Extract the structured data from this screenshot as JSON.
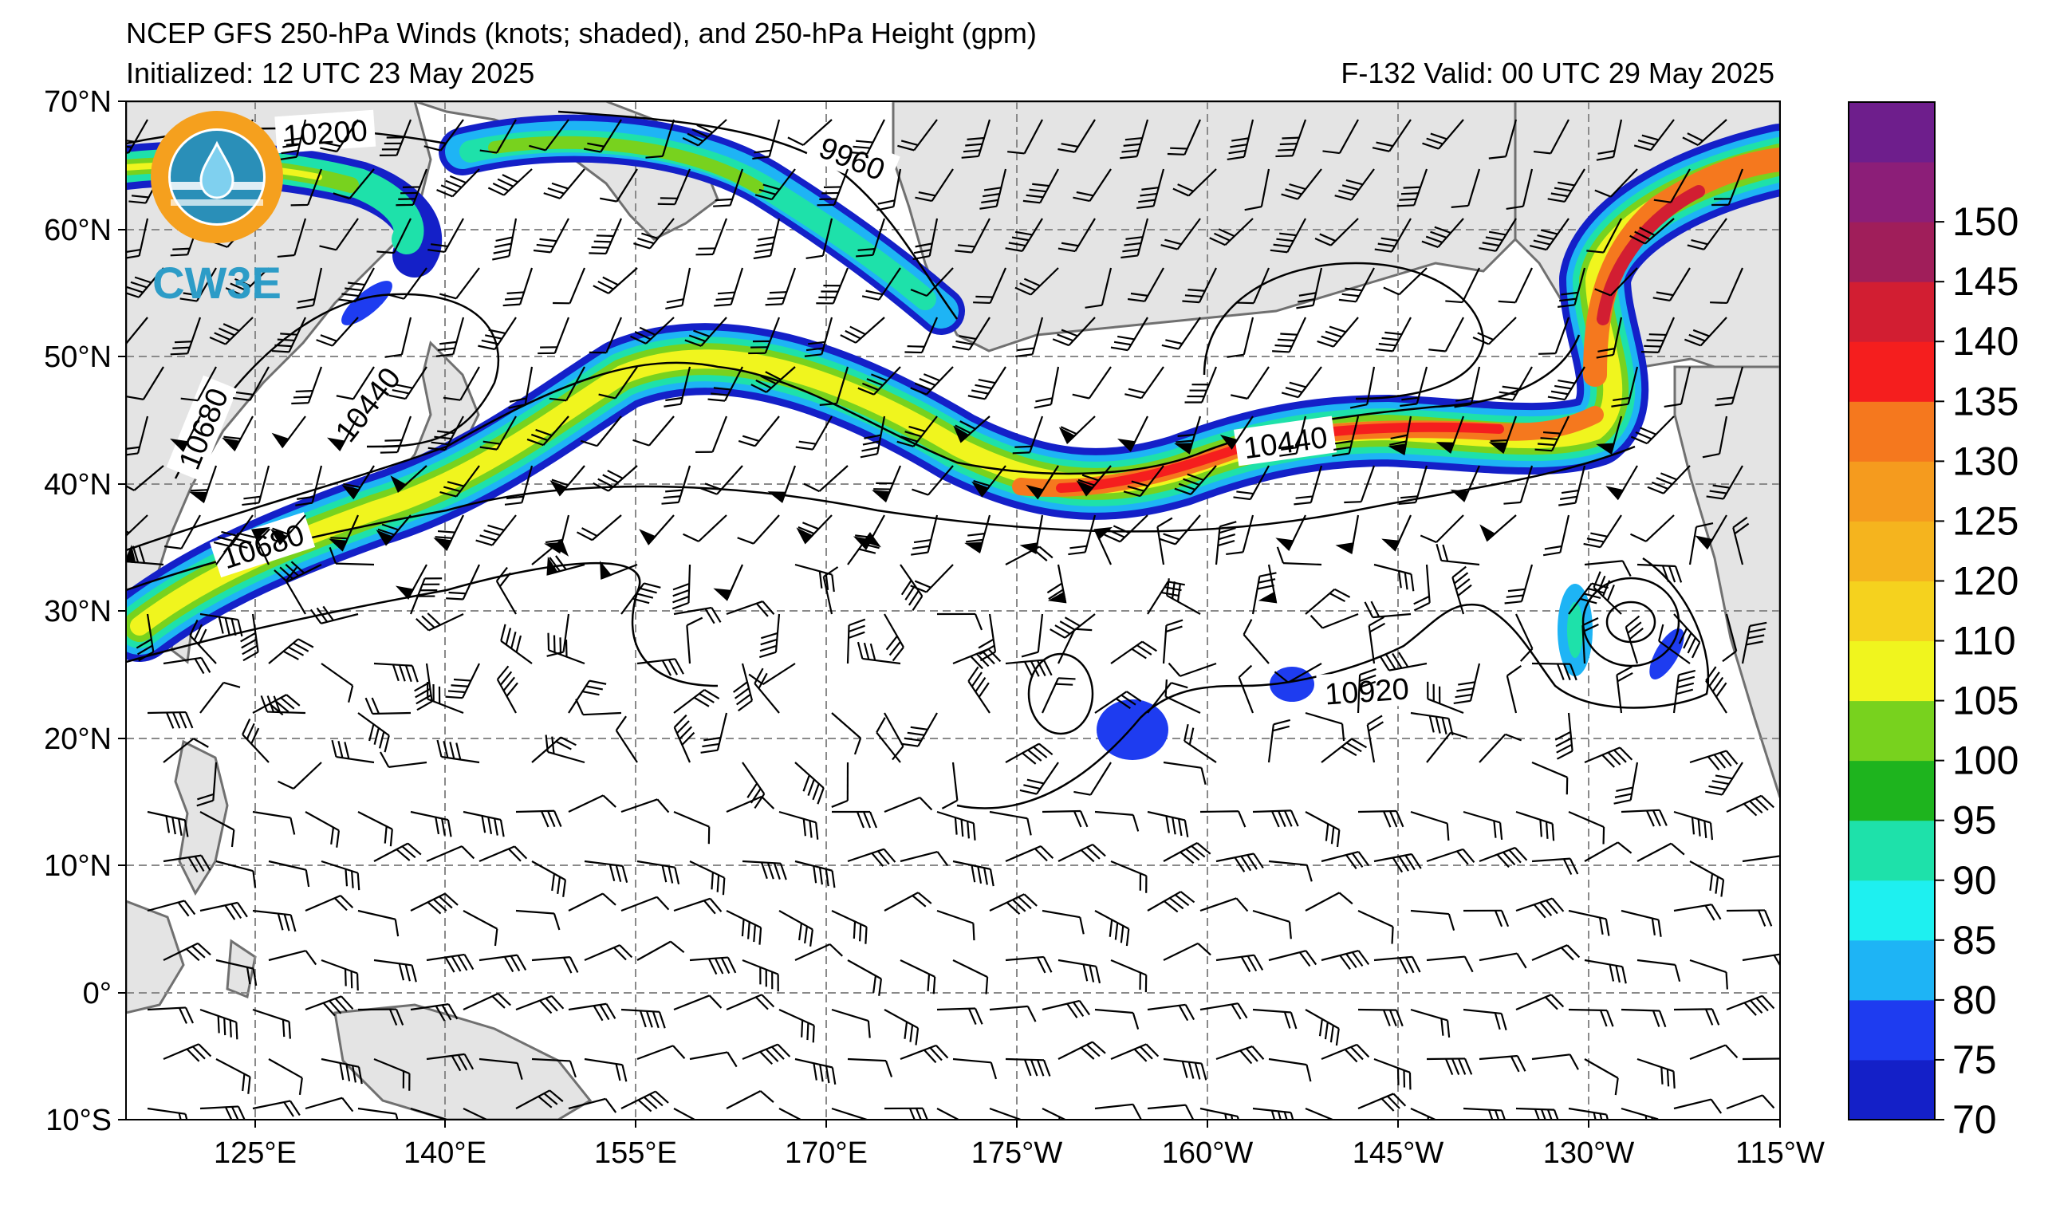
{
  "header": {
    "title": "NCEP GFS 250-hPa Winds (knots; shaded), and 250-hPa Height (gpm)",
    "initialized": "Initialized: 12 UTC 23 May 2025",
    "valid": "F-132  Valid: 00 UTC 29 May 2025"
  },
  "logo": {
    "text": "CW3E",
    "icon": "water-drop-logo-icon"
  },
  "map": {
    "lat_labels": [
      "70°N",
      "60°N",
      "50°N",
      "40°N",
      "30°N",
      "20°N",
      "10°N",
      "0°",
      "10°S"
    ],
    "lon_labels": [
      "125°E",
      "140°E",
      "155°E",
      "170°E",
      "175°W",
      "160°W",
      "145°W",
      "130°W",
      "115°W"
    ],
    "land_color": "#e4e4e4",
    "coast_color": "#707070",
    "grid_color": "#8a8a8a"
  },
  "contours": [
    {
      "id": "c9960",
      "label": "9960"
    },
    {
      "id": "c10200",
      "label": "10200"
    },
    {
      "id": "c10440a",
      "label": "10440"
    },
    {
      "id": "c10440b",
      "label": "10440"
    },
    {
      "id": "c10680a",
      "label": "10680"
    },
    {
      "id": "c10680b",
      "label": "10680"
    },
    {
      "id": "c10920",
      "label": "10920"
    }
  ],
  "colorbar": {
    "units": "knots",
    "levels": [
      70,
      75,
      80,
      85,
      90,
      95,
      100,
      105,
      110,
      115,
      120,
      125,
      130,
      135,
      140,
      145,
      150,
      155
    ],
    "labels": [
      "70",
      "75",
      "80",
      "85",
      "90",
      "95",
      "100",
      "105",
      "110",
      "120",
      "125",
      "130",
      "135",
      "140",
      "145",
      "150"
    ],
    "colors": [
      "#1420c8",
      "#1e3cf0",
      "#1eb4f5",
      "#1ef0f0",
      "#1ee1aa",
      "#1eb41e",
      "#78d21e",
      "#f0f51e",
      "#f5d21e",
      "#f5b41e",
      "#f59b1e",
      "#f5781e",
      "#f51e1e",
      "#d21e32",
      "#a01e5a",
      "#8c1e78",
      "#6e1e8c"
    ]
  }
}
